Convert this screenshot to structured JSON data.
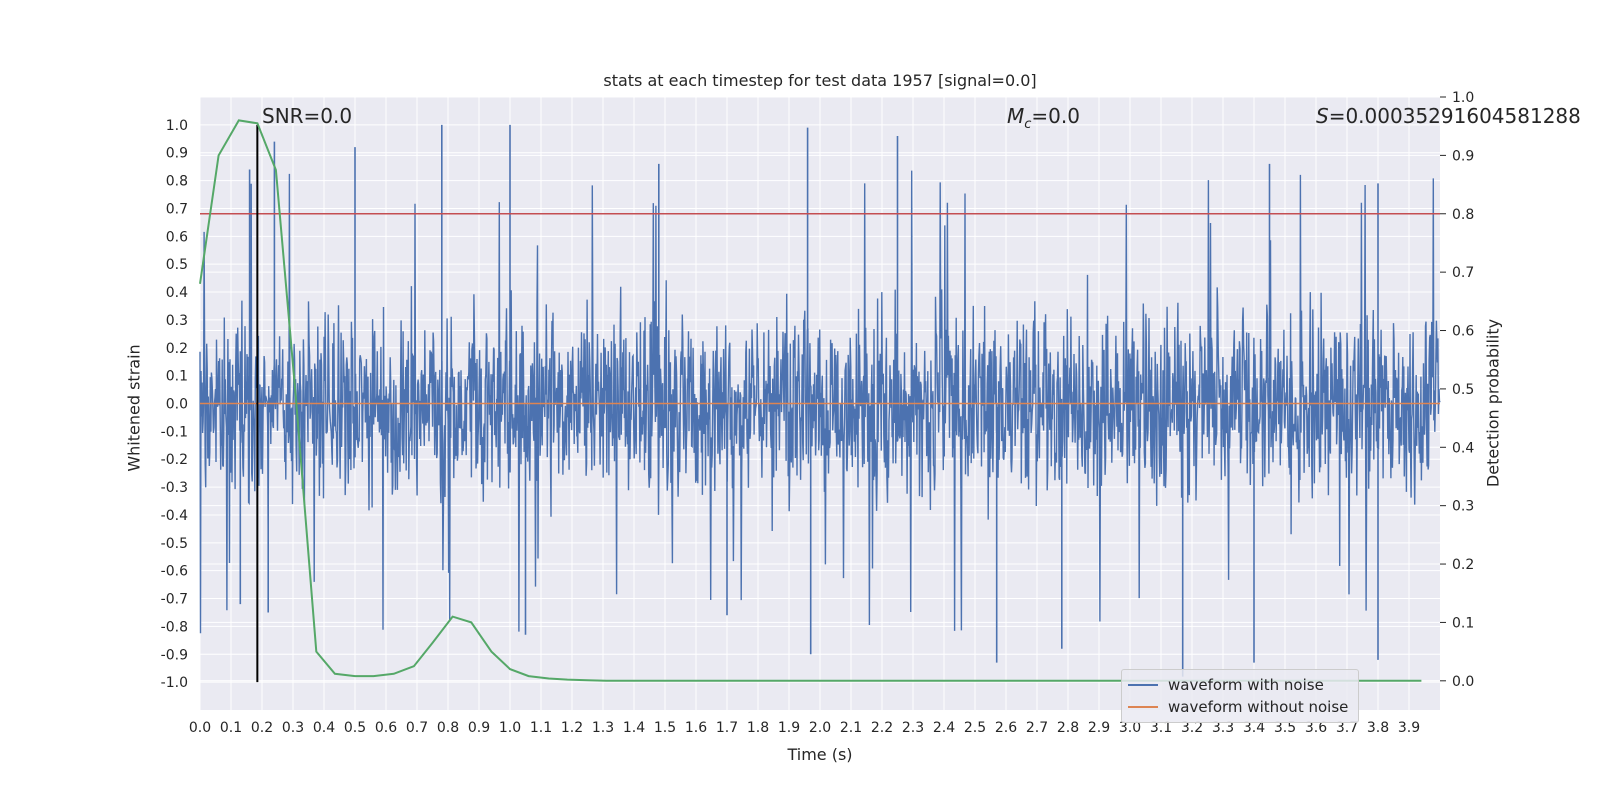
{
  "chart_data": {
    "type": "line",
    "title": "stats at each timestep for test data 1957 [signal=0.0]",
    "xlabel": "Time (s)",
    "ylabel": "Whitened strain",
    "y2label": "Detection probability",
    "xlim": [
      0.0,
      4.0
    ],
    "ylim": [
      -1.1,
      1.1
    ],
    "y2lim": [
      -0.05,
      1.0
    ],
    "x_ticks": [
      "0.0",
      "0.1",
      "0.2",
      "0.3",
      "0.4",
      "0.5",
      "0.6",
      "0.7",
      "0.8",
      "0.9",
      "1.0",
      "1.1",
      "1.2",
      "1.3",
      "1.4",
      "1.5",
      "1.6",
      "1.7",
      "1.8",
      "1.9",
      "2.0",
      "2.1",
      "2.2",
      "2.3",
      "2.4",
      "2.5",
      "2.6",
      "2.7",
      "2.8",
      "2.9",
      "3.0",
      "3.1",
      "3.2",
      "3.3",
      "3.4",
      "3.5",
      "3.6",
      "3.7",
      "3.8",
      "3.9"
    ],
    "y_ticks": [
      "1.0",
      "0.9",
      "0.8",
      "0.7",
      "0.6",
      "0.5",
      "0.4",
      "0.3",
      "0.2",
      "0.1",
      "0.0",
      "-0.1",
      "-0.2",
      "-0.3",
      "-0.4",
      "-0.5",
      "-0.6",
      "-0.7",
      "-0.8",
      "-0.9",
      "-1.0"
    ],
    "y2_ticks": [
      "1.0",
      "0.9",
      "0.8",
      "0.7",
      "0.6",
      "0.5",
      "0.4",
      "0.3",
      "0.2",
      "0.1",
      "0.0"
    ],
    "grid": true,
    "legend_position": "lower right",
    "series": [
      {
        "name": "waveform with noise",
        "axis": "left",
        "color": "#4c72b0",
        "description": "dense noisy whitened strain, roughly within -0.95..1.0",
        "notable_peaks": [
          [
            0.16,
            0.84
          ],
          [
            0.24,
            0.94
          ],
          [
            0.5,
            0.92
          ],
          [
            0.78,
            1.0
          ],
          [
            1.0,
            1.0
          ],
          [
            1.48,
            0.86
          ],
          [
            1.96,
            0.99
          ],
          [
            2.25,
            0.96
          ],
          [
            3.45,
            0.86
          ],
          [
            3.8,
            0.79
          ]
        ],
        "notable_troughs": [
          [
            0.13,
            -0.72
          ],
          [
            0.22,
            -0.75
          ],
          [
            1.05,
            -0.83
          ],
          [
            1.7,
            -0.76
          ],
          [
            1.97,
            -0.9
          ],
          [
            2.57,
            -0.93
          ],
          [
            2.78,
            -0.88
          ],
          [
            3.17,
            -0.98
          ],
          [
            3.4,
            -0.93
          ],
          [
            3.8,
            -0.92
          ]
        ]
      },
      {
        "name": "waveform without noise",
        "axis": "left",
        "color": "#dd8452",
        "x": [
          0.0,
          4.0
        ],
        "y": [
          0.0,
          0.0
        ]
      },
      {
        "name": "",
        "axis": "right",
        "color": "#55a868",
        "x": [
          0.0,
          0.06,
          0.125,
          0.185,
          0.245,
          0.31,
          0.375,
          0.435,
          0.5,
          0.56,
          0.625,
          0.69,
          0.75,
          0.815,
          0.875,
          0.94,
          1.0,
          1.06,
          1.125,
          1.185,
          1.25,
          1.31,
          1.5,
          2.0,
          2.5,
          3.0,
          3.5,
          3.94
        ],
        "y": [
          0.68,
          0.9,
          0.96,
          0.955,
          0.875,
          0.48,
          0.05,
          0.012,
          0.008,
          0.008,
          0.012,
          0.025,
          0.065,
          0.11,
          0.1,
          0.05,
          0.02,
          0.008,
          0.004,
          0.002,
          0.001,
          0.0,
          0.0,
          0.0,
          0.0,
          0.0,
          0.0,
          0.0
        ]
      }
    ],
    "hlines": [
      {
        "y": 0.8,
        "color": "#c44e52"
      }
    ],
    "vlines": [
      {
        "x": 0.185,
        "y_from": -1.0,
        "y_to": 1.0,
        "color": "#000000"
      }
    ],
    "annotations": [
      {
        "text": "SNR=0.0"
      },
      {
        "text": "Mc=0.0"
      },
      {
        "text": "S=0.00035291604581288"
      }
    ]
  }
}
